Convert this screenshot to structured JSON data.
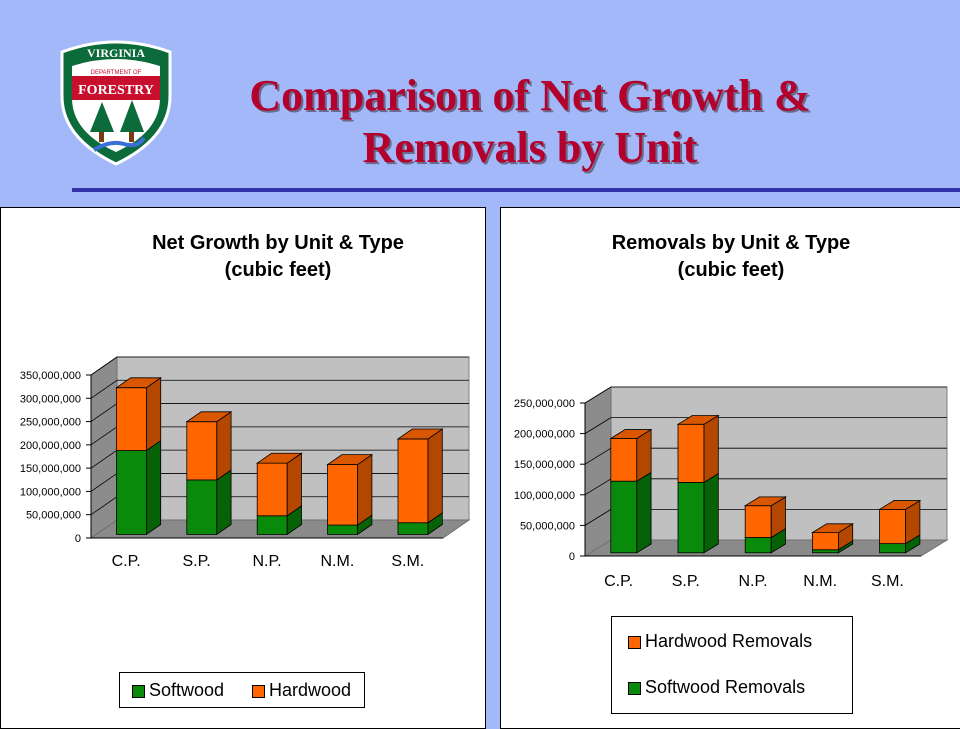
{
  "logo": {
    "top_text": "VIRGINIA",
    "middle_text": "DEPARTMENT OF",
    "bottom_text": "FORESTRY"
  },
  "slide_title": {
    "line1": "Comparison of Net Growth &",
    "line2": "Removals by Unit"
  },
  "colors": {
    "softwood": "#0a8a0a",
    "hardwood": "#ff6600",
    "title": "#b3002d",
    "background": "#a3b8f9",
    "rule": "#3333aa"
  },
  "chart_data": [
    {
      "type": "bar",
      "stacked": true,
      "three_d": true,
      "title": "Net Growth by Unit & Type",
      "subtitle": "(cubic feet)",
      "categories": [
        "C.P.",
        "S.P.",
        "N.P.",
        "N.M.",
        "S.M."
      ],
      "series": [
        {
          "name": "Softwood",
          "values": [
            180000000,
            117000000,
            40000000,
            20000000,
            25000000
          ]
        },
        {
          "name": "Hardwood",
          "values": [
            135000000,
            125000000,
            113000000,
            130000000,
            180000000
          ]
        }
      ],
      "ylim": [
        0,
        350000000
      ],
      "yticks": [
        "0",
        "50,000,000",
        "100,000,000",
        "150,000,000",
        "200,000,000",
        "250,000,000",
        "300,000,000",
        "350,000,000"
      ],
      "grid": true,
      "legend": [
        "Softwood",
        "Hardwood"
      ],
      "legend_position": "bottom"
    },
    {
      "type": "bar",
      "stacked": true,
      "three_d": true,
      "title": "Removals by Unit & Type",
      "subtitle": "(cubic feet)",
      "categories": [
        "C.P.",
        "S.P.",
        "N.P.",
        "N.M.",
        "S.M."
      ],
      "series": [
        {
          "name": "Softwood Removals",
          "values": [
            117000000,
            115000000,
            25000000,
            5000000,
            15000000
          ]
        },
        {
          "name": "Hardwood Removals",
          "values": [
            70000000,
            95000000,
            52000000,
            28000000,
            56000000
          ]
        }
      ],
      "ylim": [
        0,
        250000000
      ],
      "yticks": [
        "0",
        "50,000,000",
        "100,000,000",
        "150,000,000",
        "200,000,000",
        "250,000,000"
      ],
      "grid": true,
      "legend": [
        "Hardwood Removals",
        "Softwood Removals"
      ],
      "legend_position": "bottom"
    }
  ]
}
